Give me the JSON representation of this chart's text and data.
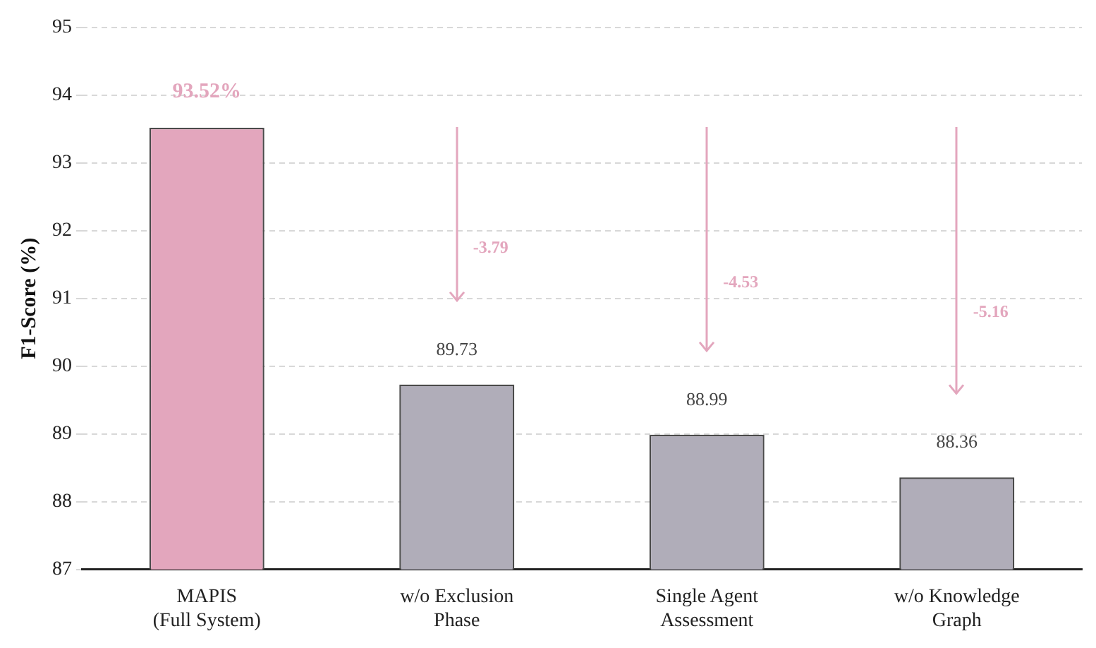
{
  "chart_data": {
    "type": "bar",
    "ylabel": "F1-Score (%)",
    "categories": [
      "MAPIS\n(Full System)",
      "w/o Exclusion\nPhase",
      "Single Agent\nAssessment",
      "w/o Knowledge\nGraph"
    ],
    "values": [
      93.52,
      89.73,
      88.99,
      88.36
    ],
    "colors": [
      "#e3a6bd",
      "#b0adb9",
      "#b0adb9",
      "#b0adb9"
    ],
    "value_labels": [
      "93.52%",
      "89.73",
      "88.99",
      "88.36"
    ],
    "ylim": [
      87,
      95
    ],
    "yticks": [
      87,
      88,
      89,
      90,
      91,
      92,
      93,
      94,
      95
    ],
    "grid": "y",
    "annotations": [
      "-3.79",
      "-4.53",
      "-5.16"
    ]
  }
}
